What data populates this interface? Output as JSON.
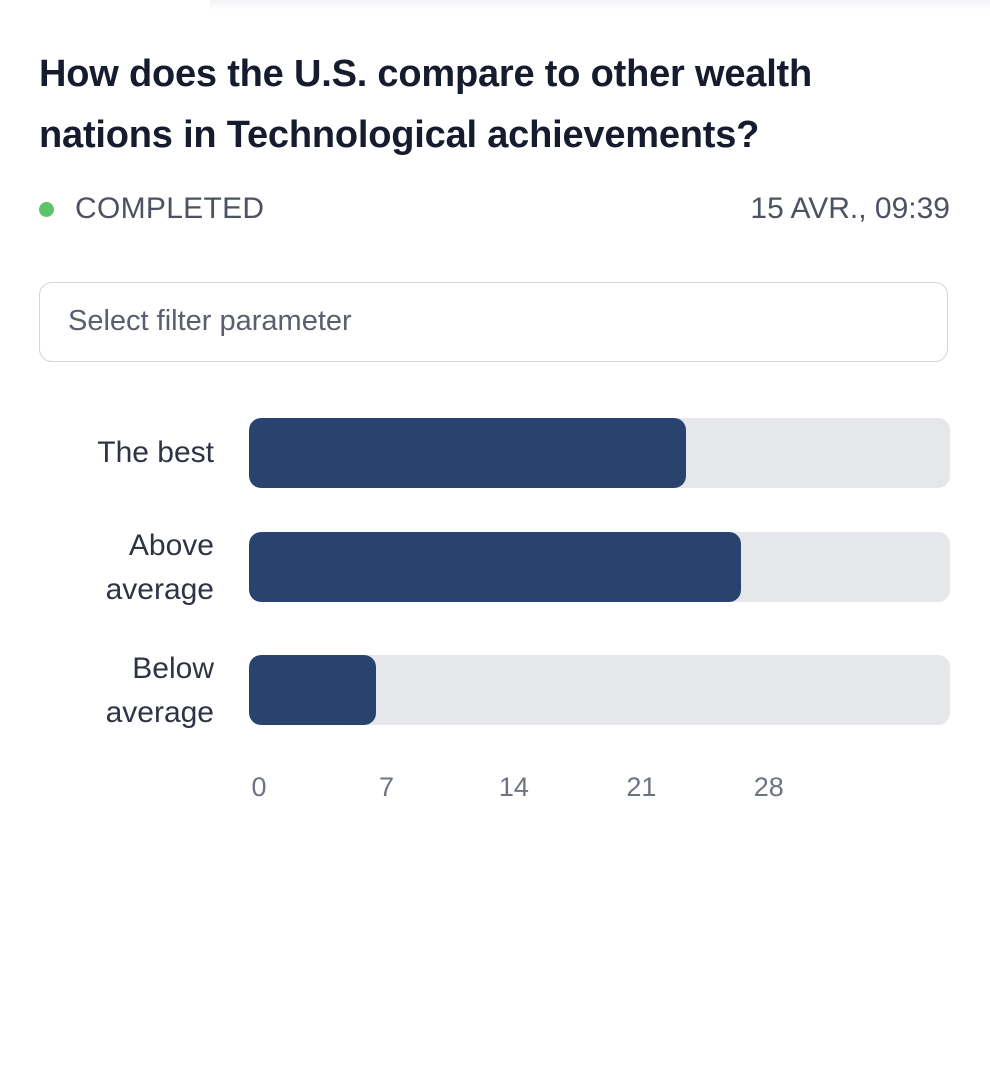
{
  "question": {
    "title": "How does the U.S. compare to other wealth nations in Technological achievements?"
  },
  "status": {
    "label": "COMPLETED",
    "timestamp": "15 AVR., 09:39",
    "color": "#5ec46a"
  },
  "filter": {
    "placeholder": "Select filter parameter"
  },
  "colors": {
    "bar": "#28446e",
    "track": "#e6e7eb"
  },
  "chart_data": {
    "type": "bar",
    "orientation": "horizontal",
    "categories": [
      "The best",
      "Above average",
      "Below average"
    ],
    "category_lines": [
      [
        "The best"
      ],
      [
        "Above",
        "average"
      ],
      [
        "Below",
        "average"
      ]
    ],
    "values": [
      24,
      27,
      7
    ],
    "xticks": [
      "0",
      "7",
      "14",
      "21",
      "28"
    ],
    "xlim": [
      0,
      38.5
    ],
    "grid": false,
    "legend": "none"
  }
}
